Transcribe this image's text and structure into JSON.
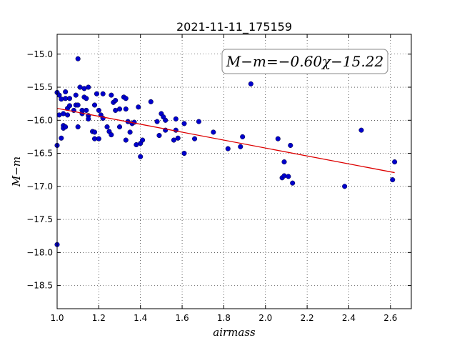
{
  "chart_data": {
    "type": "scatter",
    "title": "2021-11-11_175159",
    "xlabel": "airmass",
    "ylabel": "M−m",
    "xlim": [
      1.0,
      2.7
    ],
    "ylim": [
      -18.85,
      -14.7
    ],
    "y_inverted": true,
    "xticks": [
      1.0,
      1.2,
      1.4,
      1.6,
      1.8,
      2.0,
      2.2,
      2.4,
      2.6
    ],
    "xtick_labels": [
      "1.0",
      "1.2",
      "1.4",
      "1.6",
      "1.8",
      "2.0",
      "2.2",
      "2.4",
      "2.6"
    ],
    "yticks": [
      -15.0,
      -15.5,
      -16.0,
      -16.5,
      -17.0,
      -17.5,
      -18.0,
      -18.5
    ],
    "ytick_labels": [
      "−15.0",
      "−15.5",
      "−16.0",
      "−16.5",
      "−17.0",
      "−17.5",
      "−18.0",
      "−18.5"
    ],
    "grid": true,
    "annotation": "M−m=−0.60χ−15.22",
    "annotation_position": "top-right",
    "point_color": "#0000cc",
    "fit_color": "#dd0000",
    "fit": {
      "slope": -0.6,
      "intercept": -15.22,
      "x_range": [
        1.0,
        2.62
      ]
    },
    "points": [
      [
        1.0,
        -15.58
      ],
      [
        1.0,
        -16.38
      ],
      [
        1.0,
        -17.88
      ],
      [
        1.01,
        -15.62
      ],
      [
        1.01,
        -15.92
      ],
      [
        1.02,
        -15.68
      ],
      [
        1.02,
        -16.27
      ],
      [
        1.03,
        -15.9
      ],
      [
        1.03,
        -16.08
      ],
      [
        1.03,
        -16.12
      ],
      [
        1.04,
        -15.57
      ],
      [
        1.04,
        -15.67
      ],
      [
        1.04,
        -16.1
      ],
      [
        1.05,
        -15.82
      ],
      [
        1.05,
        -15.92
      ],
      [
        1.06,
        -15.78
      ],
      [
        1.06,
        -15.67
      ],
      [
        1.08,
        -15.85
      ],
      [
        1.09,
        -15.62
      ],
      [
        1.09,
        -15.77
      ],
      [
        1.1,
        -15.07
      ],
      [
        1.1,
        -16.1
      ],
      [
        1.1,
        -15.77
      ],
      [
        1.11,
        -15.5
      ],
      [
        1.12,
        -15.85
      ],
      [
        1.12,
        -15.9
      ],
      [
        1.13,
        -15.52
      ],
      [
        1.13,
        -15.65
      ],
      [
        1.14,
        -15.67
      ],
      [
        1.14,
        -15.85
      ],
      [
        1.15,
        -15.5
      ],
      [
        1.15,
        -15.93
      ],
      [
        1.15,
        -15.98
      ],
      [
        1.17,
        -16.17
      ],
      [
        1.18,
        -16.28
      ],
      [
        1.18,
        -15.77
      ],
      [
        1.18,
        -16.18
      ],
      [
        1.19,
        -15.6
      ],
      [
        1.2,
        -15.85
      ],
      [
        1.2,
        -16.28
      ],
      [
        1.21,
        -15.92
      ],
      [
        1.22,
        -15.97
      ],
      [
        1.22,
        -15.6
      ],
      [
        1.24,
        -16.1
      ],
      [
        1.25,
        -16.17
      ],
      [
        1.26,
        -16.22
      ],
      [
        1.26,
        -15.62
      ],
      [
        1.27,
        -15.73
      ],
      [
        1.28,
        -15.7
      ],
      [
        1.28,
        -15.85
      ],
      [
        1.3,
        -15.83
      ],
      [
        1.3,
        -16.1
      ],
      [
        1.32,
        -15.65
      ],
      [
        1.33,
        -15.67
      ],
      [
        1.33,
        -16.3
      ],
      [
        1.33,
        -15.83
      ],
      [
        1.34,
        -16.02
      ],
      [
        1.35,
        -16.18
      ],
      [
        1.36,
        -16.05
      ],
      [
        1.37,
        -16.03
      ],
      [
        1.38,
        -16.37
      ],
      [
        1.39,
        -15.8
      ],
      [
        1.4,
        -16.35
      ],
      [
        1.4,
        -16.55
      ],
      [
        1.41,
        -16.3
      ],
      [
        1.45,
        -15.72
      ],
      [
        1.48,
        -16.02
      ],
      [
        1.49,
        -16.23
      ],
      [
        1.5,
        -15.9
      ],
      [
        1.51,
        -15.95
      ],
      [
        1.52,
        -16.0
      ],
      [
        1.52,
        -16.15
      ],
      [
        1.56,
        -16.3
      ],
      [
        1.57,
        -15.98
      ],
      [
        1.57,
        -16.15
      ],
      [
        1.58,
        -16.27
      ],
      [
        1.61,
        -16.05
      ],
      [
        1.61,
        -16.5
      ],
      [
        1.66,
        -16.28
      ],
      [
        1.68,
        -16.02
      ],
      [
        1.75,
        -16.18
      ],
      [
        1.82,
        -16.43
      ],
      [
        1.88,
        -16.4
      ],
      [
        1.89,
        -16.25
      ],
      [
        1.93,
        -15.45
      ],
      [
        2.06,
        -16.28
      ],
      [
        2.08,
        -16.87
      ],
      [
        2.09,
        -16.63
      ],
      [
        2.09,
        -16.84
      ],
      [
        2.11,
        -16.85
      ],
      [
        2.12,
        -16.38
      ],
      [
        2.13,
        -16.95
      ],
      [
        2.38,
        -17.0
      ],
      [
        2.46,
        -16.15
      ],
      [
        2.61,
        -16.9
      ],
      [
        2.62,
        -16.63
      ]
    ]
  }
}
